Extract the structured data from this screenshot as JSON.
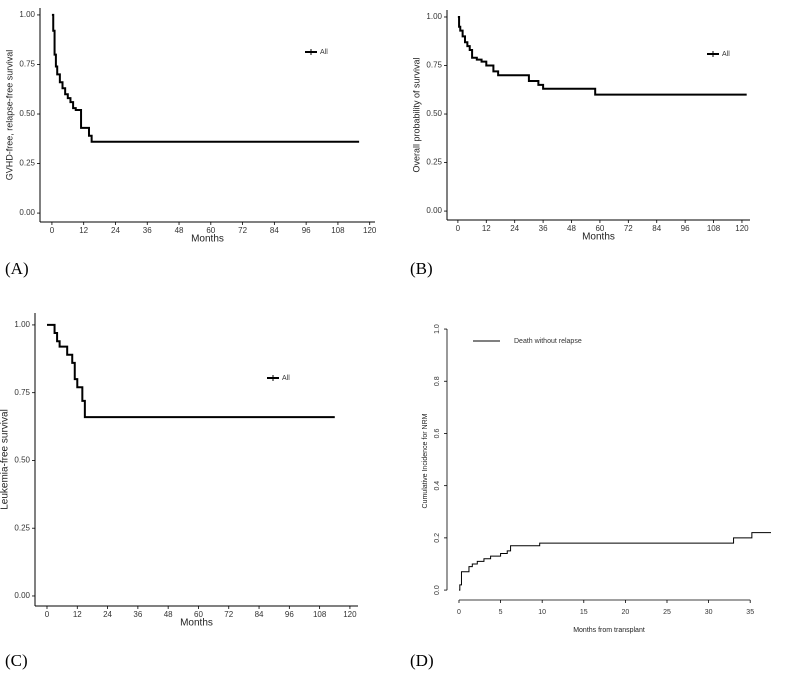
{
  "chart_data": [
    {
      "type": "step",
      "panel": "(A)",
      "xlabel": "Months",
      "ylabel": "GVHD-free, relapse-free survival",
      "x": [
        0,
        0.5,
        1,
        1.5,
        2,
        3,
        4,
        5,
        6,
        7,
        8,
        9,
        11,
        13,
        14,
        15,
        116
      ],
      "series": [
        {
          "name": "All",
          "color": "#000000",
          "values": [
            1,
            0.92,
            0.8,
            0.74,
            0.7,
            0.66,
            0.63,
            0.6,
            0.58,
            0.56,
            0.53,
            0.52,
            0.43,
            0.43,
            0.39,
            0.36,
            0.36
          ]
        }
      ],
      "xlim": [
        -4.5,
        122
      ],
      "ylim": [
        -0.045,
        1.035
      ],
      "xticks": [
        0,
        12,
        24,
        36,
        48,
        60,
        72,
        84,
        96,
        108,
        120
      ],
      "yticks": [
        {
          "value": 0,
          "label": "0.00"
        },
        {
          "value": 0.25,
          "label": "0.25"
        },
        {
          "value": 0.5,
          "label": "0.50"
        },
        {
          "value": 0.75,
          "label": "0.75"
        },
        {
          "value": 1,
          "label": "1.00"
        }
      ]
    },
    {
      "type": "step",
      "panel": "(B)",
      "xlabel": "Months",
      "ylabel": "Overall probability of survival",
      "x": [
        0,
        0.5,
        1,
        2,
        3,
        4,
        5,
        6,
        8,
        10,
        12,
        15,
        17,
        30,
        34,
        36,
        58,
        122
      ],
      "series": [
        {
          "name": "All",
          "color": "#000000",
          "values": [
            1,
            0.95,
            0.93,
            0.9,
            0.87,
            0.85,
            0.83,
            0.79,
            0.78,
            0.77,
            0.75,
            0.72,
            0.7,
            0.67,
            0.65,
            0.63,
            0.6,
            0.6
          ]
        }
      ],
      "xlim": [
        -4.6,
        123.4
      ],
      "ylim": [
        -0.046,
        1.036
      ],
      "xticks": [
        0,
        12,
        24,
        36,
        48,
        60,
        72,
        84,
        96,
        108,
        120
      ],
      "yticks": [
        {
          "value": 0,
          "label": "0.00"
        },
        {
          "value": 0.25,
          "label": "0.25"
        },
        {
          "value": 0.5,
          "label": "0.50"
        },
        {
          "value": 0.75,
          "label": "0.75"
        },
        {
          "value": 1,
          "label": "1.00"
        }
      ]
    },
    {
      "type": "step",
      "panel": "(C)",
      "xlabel": "Months",
      "ylabel": "Leukemia-free survival",
      "x": [
        0,
        3,
        4,
        5,
        8,
        10,
        11,
        12,
        14,
        15,
        114
      ],
      "series": [
        {
          "name": "All",
          "color": "#000000",
          "values": [
            1,
            0.97,
            0.94,
            0.92,
            0.89,
            0.86,
            0.8,
            0.77,
            0.72,
            0.66,
            0.66
          ]
        }
      ],
      "xlim": [
        -4.75,
        123.2
      ],
      "ylim": [
        -0.037,
        1.044
      ],
      "xticks": [
        0,
        12,
        24,
        36,
        48,
        60,
        72,
        84,
        96,
        108,
        120
      ],
      "yticks": [
        {
          "value": 0,
          "label": "0.00"
        },
        {
          "value": 0.25,
          "label": "0.25"
        },
        {
          "value": 0.5,
          "label": "0.50"
        },
        {
          "value": 0.75,
          "label": "0.75"
        },
        {
          "value": 1,
          "label": "1.00"
        }
      ]
    },
    {
      "type": "step",
      "panel": "(D)",
      "xlabel": "Months from transplant",
      "ylabel": "Cumulative Incidence for NRM",
      "x": [
        0,
        0.1,
        0.3,
        1.2,
        1.6,
        2.2,
        3,
        3.8,
        5,
        5.8,
        6.2,
        9.7,
        33,
        35.2,
        37.5
      ],
      "series": [
        {
          "name": "Death without relapse",
          "color": "#000000",
          "values": [
            0,
            0.02,
            0.07,
            0.09,
            0.1,
            0.11,
            0.12,
            0.13,
            0.14,
            0.15,
            0.17,
            0.18,
            0.2,
            0.22,
            0.22
          ]
        }
      ],
      "xlim": [
        -1.44,
        37.5
      ],
      "ylim": [
        -0.038,
        1.027
      ],
      "xticks": [
        0,
        5,
        10,
        15,
        20,
        25,
        30,
        35
      ],
      "yticks": [
        {
          "value": 0,
          "label": "0.0"
        },
        {
          "value": 0.2,
          "label": "0.2"
        },
        {
          "value": 0.4,
          "label": "0.4"
        },
        {
          "value": 0.6,
          "label": "0.6"
        },
        {
          "value": 0.8,
          "label": "0.8"
        },
        {
          "value": 1,
          "label": "1.0"
        }
      ]
    }
  ]
}
